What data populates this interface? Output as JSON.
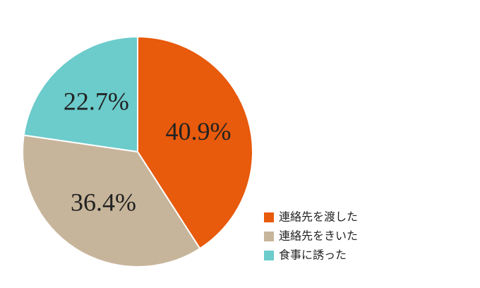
{
  "chart_data": {
    "type": "pie",
    "categories": [
      "連絡先を渡した",
      "連絡先をきいた",
      "食事に誘った"
    ],
    "values": [
      40.9,
      36.4,
      22.7
    ],
    "value_labels": [
      "40.9%",
      "36.4%",
      "22.7%"
    ],
    "colors": [
      "#e85a0c",
      "#c7b59b",
      "#6ccbcb"
    ],
    "legend": "bottom-right"
  }
}
